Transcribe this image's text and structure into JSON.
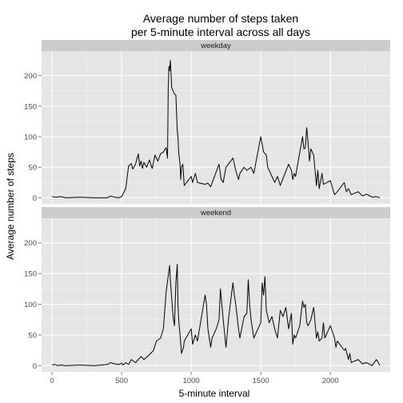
{
  "chart_data": {
    "type": "line",
    "title": "Average number of steps taken",
    "subtitle": "per 5-minute interval across all days",
    "xlabel": "5-minute interval",
    "ylabel": "Average number of steps",
    "xlim": [
      -75,
      2430
    ],
    "ylim": [
      -10,
      240
    ],
    "x_ticks": [
      0,
      500,
      1000,
      1500,
      2000
    ],
    "y_ticks": [
      0,
      50,
      100,
      150,
      200
    ],
    "grid": true,
    "colors": {
      "panel_bg": "#e5e5e5",
      "grid_major": "#ffffff",
      "grid_minor": "#f2f2f2",
      "strip_bg": "#cccccc",
      "line": "#000000"
    },
    "facets": [
      {
        "label": "weekday",
        "series": [
          {
            "points": [
              [
                0,
                2
              ],
              [
                30,
                1
              ],
              [
                60,
                2
              ],
              [
                100,
                0
              ],
              [
                200,
                1
              ],
              [
                300,
                0
              ],
              [
                400,
                0
              ],
              [
                420,
                3
              ],
              [
                450,
                1
              ],
              [
                480,
                0
              ],
              [
                500,
                2
              ],
              [
                530,
                15
              ],
              [
                550,
                52
              ],
              [
                570,
                56
              ],
              [
                580,
                47
              ],
              [
                600,
                55
              ],
              [
                620,
                72
              ],
              [
                630,
                52
              ],
              [
                640,
                60
              ],
              [
                650,
                48
              ],
              [
                660,
                58
              ],
              [
                680,
                50
              ],
              [
                700,
                62
              ],
              [
                720,
                48
              ],
              [
                740,
                70
              ],
              [
                760,
                60
              ],
              [
                780,
                72
              ],
              [
                800,
                75
              ],
              [
                820,
                82
              ],
              [
                830,
                65
              ],
              [
                835,
                180
              ],
              [
                840,
                215
              ],
              [
                845,
                208
              ],
              [
                850,
                225
              ],
              [
                855,
                205
              ],
              [
                860,
                180
              ],
              [
                870,
                175
              ],
              [
                880,
                170
              ],
              [
                890,
                168
              ],
              [
                900,
                110
              ],
              [
                905,
                100
              ],
              [
                910,
                75
              ],
              [
                920,
                55
              ],
              [
                925,
                30
              ],
              [
                930,
                50
              ],
              [
                940,
                55
              ],
              [
                950,
                20
              ],
              [
                1000,
                35
              ],
              [
                1010,
                25
              ],
              [
                1030,
                40
              ],
              [
                1045,
                25
              ],
              [
                1100,
                22
              ],
              [
                1120,
                24
              ],
              [
                1140,
                18
              ],
              [
                1200,
                55
              ],
              [
                1215,
                30
              ],
              [
                1230,
                25
              ],
              [
                1250,
                50
              ],
              [
                1300,
                65
              ],
              [
                1320,
                45
              ],
              [
                1340,
                30
              ],
              [
                1350,
                40
              ],
              [
                1380,
                50
              ],
              [
                1400,
                45
              ],
              [
                1430,
                50
              ],
              [
                1450,
                40
              ],
              [
                1500,
                100
              ],
              [
                1520,
                75
              ],
              [
                1540,
                70
              ],
              [
                1550,
                50
              ],
              [
                1600,
                25
              ],
              [
                1620,
                35
              ],
              [
                1640,
                20
              ],
              [
                1700,
                55
              ],
              [
                1720,
                45
              ],
              [
                1730,
                30
              ],
              [
                1740,
                40
              ],
              [
                1750,
                35
              ],
              [
                1800,
                100
              ],
              [
                1810,
                80
              ],
              [
                1820,
                82
              ],
              [
                1830,
                115
              ],
              [
                1840,
                90
              ],
              [
                1850,
                60
              ],
              [
                1860,
                80
              ],
              [
                1880,
                70
              ],
              [
                1900,
                20
              ],
              [
                1910,
                45
              ],
              [
                1920,
                15
              ],
              [
                1940,
                40
              ],
              [
                1950,
                22
              ],
              [
                2000,
                28
              ],
              [
                2030,
                5
              ],
              [
                2050,
                10
              ],
              [
                2100,
                25
              ],
              [
                2115,
                10
              ],
              [
                2130,
                15
              ],
              [
                2150,
                5
              ],
              [
                2200,
                10
              ],
              [
                2230,
                3
              ],
              [
                2260,
                6
              ],
              [
                2300,
                1
              ],
              [
                2330,
                2
              ],
              [
                2355,
                0
              ]
            ]
          }
        ]
      },
      {
        "label": "weekend",
        "series": [
          {
            "points": [
              [
                0,
                1
              ],
              [
                20,
                2
              ],
              [
                40,
                0
              ],
              [
                60,
                1
              ],
              [
                100,
                0
              ],
              [
                200,
                1
              ],
              [
                300,
                0
              ],
              [
                400,
                2
              ],
              [
                420,
                5
              ],
              [
                450,
                3
              ],
              [
                480,
                2
              ],
              [
                500,
                4
              ],
              [
                510,
                1
              ],
              [
                530,
                5
              ],
              [
                550,
                2
              ],
              [
                570,
                10
              ],
              [
                600,
                5
              ],
              [
                640,
                15
              ],
              [
                660,
                10
              ],
              [
                700,
                18
              ],
              [
                730,
                25
              ],
              [
                750,
                40
              ],
              [
                780,
                45
              ],
              [
                800,
                60
              ],
              [
                810,
                90
              ],
              [
                820,
                120
              ],
              [
                840,
                155
              ],
              [
                845,
                163
              ],
              [
                850,
                140
              ],
              [
                860,
                110
              ],
              [
                870,
                80
              ],
              [
                880,
                65
              ],
              [
                890,
                135
              ],
              [
                900,
                165
              ],
              [
                905,
                100
              ],
              [
                910,
                75
              ],
              [
                920,
                50
              ],
              [
                930,
                20
              ],
              [
                945,
                30
              ],
              [
                950,
                40
              ],
              [
                1000,
                60
              ],
              [
                1010,
                35
              ],
              [
                1030,
                50
              ],
              [
                1045,
                40
              ],
              [
                1100,
                115
              ],
              [
                1110,
                100
              ],
              [
                1120,
                60
              ],
              [
                1140,
                30
              ],
              [
                1150,
                45
              ],
              [
                1180,
                60
              ],
              [
                1200,
                75
              ],
              [
                1210,
                125
              ],
              [
                1230,
                75
              ],
              [
                1250,
                30
              ],
              [
                1270,
                80
              ],
              [
                1300,
                135
              ],
              [
                1310,
                115
              ],
              [
                1320,
                100
              ],
              [
                1340,
                60
              ],
              [
                1350,
                45
              ],
              [
                1380,
                80
              ],
              [
                1400,
                85
              ],
              [
                1410,
                140
              ],
              [
                1420,
                100
              ],
              [
                1430,
                75
              ],
              [
                1450,
                45
              ],
              [
                1500,
                70
              ],
              [
                1510,
                135
              ],
              [
                1520,
                115
              ],
              [
                1530,
                145
              ],
              [
                1540,
                90
              ],
              [
                1560,
                70
              ],
              [
                1580,
                80
              ],
              [
                1600,
                60
              ],
              [
                1620,
                45
              ],
              [
                1640,
                90
              ],
              [
                1660,
                80
              ],
              [
                1680,
                95
              ],
              [
                1700,
                60
              ],
              [
                1720,
                85
              ],
              [
                1730,
                35
              ],
              [
                1740,
                50
              ],
              [
                1750,
                45
              ],
              [
                1780,
                65
              ],
              [
                1800,
                105
              ],
              [
                1810,
                95
              ],
              [
                1820,
                100
              ],
              [
                1830,
                70
              ],
              [
                1840,
                65
              ],
              [
                1860,
                75
              ],
              [
                1880,
                95
              ],
              [
                1900,
                45
              ],
              [
                1910,
                55
              ],
              [
                1920,
                40
              ],
              [
                1940,
                45
              ],
              [
                1950,
                70
              ],
              [
                1960,
                45
              ],
              [
                2000,
                65
              ],
              [
                2030,
                45
              ],
              [
                2040,
                30
              ],
              [
                2050,
                40
              ],
              [
                2100,
                25
              ],
              [
                2110,
                28
              ],
              [
                2130,
                10
              ],
              [
                2140,
                20
              ],
              [
                2150,
                5
              ],
              [
                2200,
                10
              ],
              [
                2230,
                3
              ],
              [
                2260,
                5
              ],
              [
                2300,
                0
              ],
              [
                2330,
                10
              ],
              [
                2340,
                7
              ],
              [
                2355,
                0
              ]
            ]
          }
        ]
      }
    ]
  }
}
